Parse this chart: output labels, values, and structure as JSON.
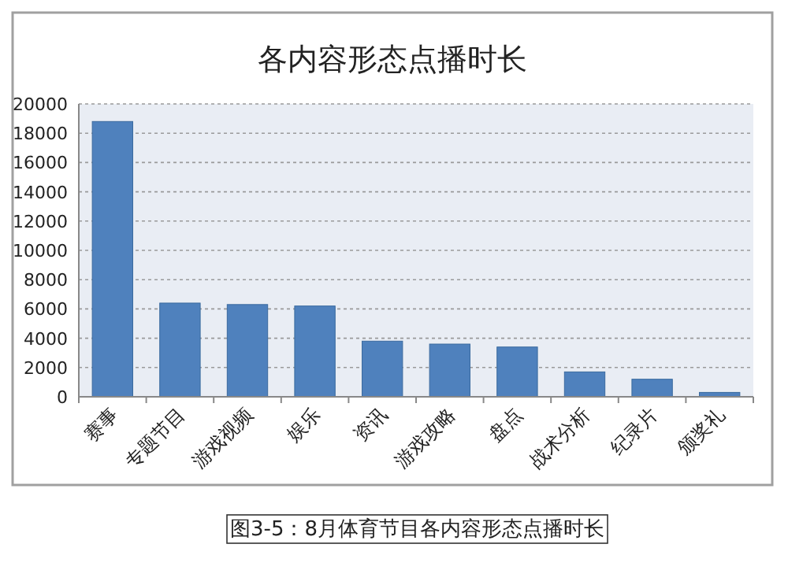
{
  "chart_data": {
    "type": "bar",
    "title": "各内容形态点播时长",
    "categories": [
      "赛事",
      "专题节目",
      "游戏视频",
      "娱乐",
      "资讯",
      "游戏攻略",
      "盘点",
      "战术分析",
      "纪录片",
      "颁奖礼"
    ],
    "series": [
      {
        "color": "#4f81bd",
        "values": [
          18800,
          6400,
          6300,
          6200,
          3800,
          3600,
          3400,
          1700,
          1200,
          300
        ]
      }
    ],
    "ylim": [
      0,
      20000
    ],
    "yticks": [
      0,
      2000,
      4000,
      6000,
      8000,
      10000,
      12000,
      14000,
      16000,
      18000,
      20000
    ],
    "grid": "y",
    "annotations": [
      "图3-5：8月体育节目各内容形态点播时长"
    ]
  }
}
